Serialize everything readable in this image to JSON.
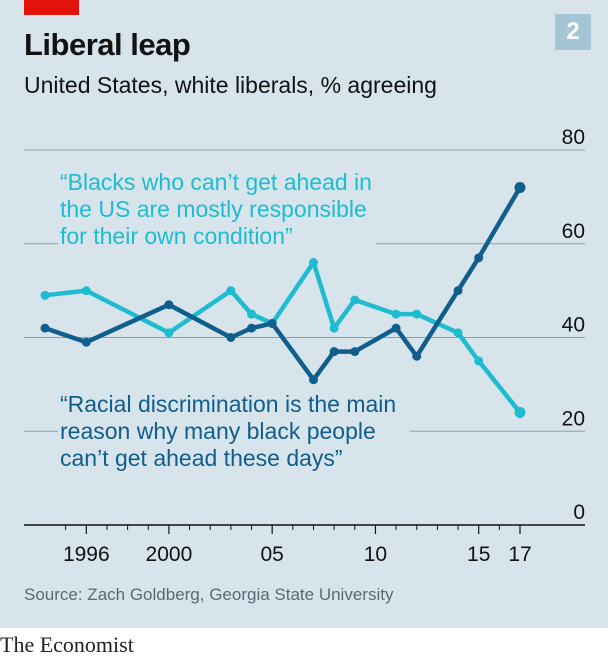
{
  "header": {
    "title": "Liberal leap",
    "subtitle": "United States, white liberals, % agreeing",
    "chart_number": "2"
  },
  "footer": {
    "source": "Source: Zach Goldberg, Georgia State University",
    "brand": "The Economist"
  },
  "colors": {
    "background": "#d7e4eb",
    "series_light": "#1ebcd1",
    "series_dark": "#0f5e8c",
    "grid": "#8aa1ad",
    "accent_red": "#e3120b"
  },
  "chart_data": {
    "type": "line",
    "title": "Liberal leap",
    "subtitle": "United States, white liberals, % agreeing",
    "ylim": [
      0,
      80
    ],
    "y_ticks": [
      "0",
      "20",
      "40",
      "60",
      "80"
    ],
    "x_ticks": [
      {
        "value": 1996,
        "label": "1996"
      },
      {
        "value": 2000,
        "label": "2000"
      },
      {
        "value": 2005,
        "label": "05"
      },
      {
        "value": 2010,
        "label": "10"
      },
      {
        "value": 2015,
        "label": "15"
      },
      {
        "value": 2017,
        "label": "17"
      }
    ],
    "grid": true,
    "series": [
      {
        "label_lines": [
          "“Blacks who can’t get ahead in",
          "the US are mostly responsible",
          "for their own condition”"
        ],
        "color": "#1ebcd1",
        "x": [
          1994,
          1996,
          2000,
          2003,
          2004,
          2005,
          2007,
          2008,
          2009,
          2011,
          2012,
          2014,
          2015,
          2017
        ],
        "y": [
          49,
          50,
          41,
          50,
          45,
          43,
          56,
          42,
          48,
          45,
          45,
          41,
          35,
          24
        ]
      },
      {
        "label_lines": [
          "“Racial discrimination is the main",
          "reason why many black people",
          "can’t get ahead these days”"
        ],
        "color": "#0f5e8c",
        "x": [
          1994,
          1996,
          2000,
          2003,
          2004,
          2005,
          2007,
          2008,
          2009,
          2011,
          2012,
          2014,
          2015,
          2017
        ],
        "y": [
          42,
          39,
          47,
          40,
          42,
          43,
          31,
          37,
          37,
          42,
          36,
          50,
          57,
          72
        ]
      }
    ]
  }
}
